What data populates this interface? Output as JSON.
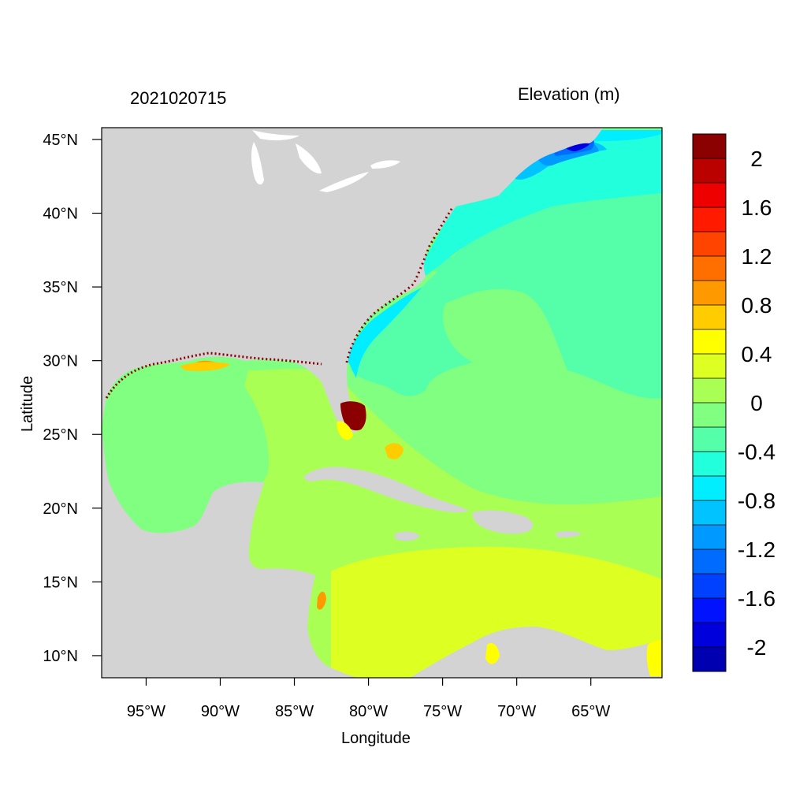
{
  "header": {
    "datetime": "2021020715",
    "variable": "Elevation (m)"
  },
  "axes": {
    "x_title": "Longitude",
    "y_title": "Latitude",
    "lon_ticks": [
      {
        "value": -95,
        "label": "95°W"
      },
      {
        "value": -90,
        "label": "90°W"
      },
      {
        "value": -85,
        "label": "85°W"
      },
      {
        "value": -80,
        "label": "80°W"
      },
      {
        "value": -75,
        "label": "75°W"
      },
      {
        "value": -70,
        "label": "70°W"
      },
      {
        "value": -65,
        "label": "65°W"
      }
    ],
    "lat_ticks": [
      {
        "value": 45,
        "label": "45°N"
      },
      {
        "value": 40,
        "label": "40°N"
      },
      {
        "value": 35,
        "label": "35°N"
      },
      {
        "value": 30,
        "label": "30°N"
      },
      {
        "value": 25,
        "label": "25°N"
      },
      {
        "value": 20,
        "label": "20°N"
      },
      {
        "value": 15,
        "label": "15°N"
      },
      {
        "value": 10,
        "label": "10°N"
      }
    ],
    "lon_range": [
      -98,
      -60.2
    ],
    "lat_range": [
      8.5,
      45.8
    ]
  },
  "map": {
    "land_color": "#d3d3d3",
    "background_level_color": "#80ff80"
  },
  "colorbar": {
    "colors_top_to_bottom": [
      "#8b0000",
      "#bb0000",
      "#ee0000",
      "#ff1a00",
      "#ff4400",
      "#ff6f00",
      "#ff9900",
      "#ffcc00",
      "#ffff00",
      "#ddff22",
      "#aaff55",
      "#80ff80",
      "#55ffaa",
      "#22ffdd",
      "#00eeff",
      "#00c3ff",
      "#0099ff",
      "#006cff",
      "#0040ff",
      "#0012ff",
      "#0000dd",
      "#0000b0"
    ],
    "labels": [
      {
        "value": 2,
        "label": "2"
      },
      {
        "value": 1.6,
        "label": "1.6"
      },
      {
        "value": 1.2,
        "label": "1.2"
      },
      {
        "value": 0.8,
        "label": "0.8"
      },
      {
        "value": 0.4,
        "label": "0.4"
      },
      {
        "value": 0,
        "label": "0"
      },
      {
        "value": -0.4,
        "label": "-0.4"
      },
      {
        "value": -0.8,
        "label": "-0.8"
      },
      {
        "value": -1.2,
        "label": "-1.2"
      },
      {
        "value": -1.6,
        "label": "-1.6"
      },
      {
        "value": -2,
        "label": "-2"
      }
    ]
  }
}
